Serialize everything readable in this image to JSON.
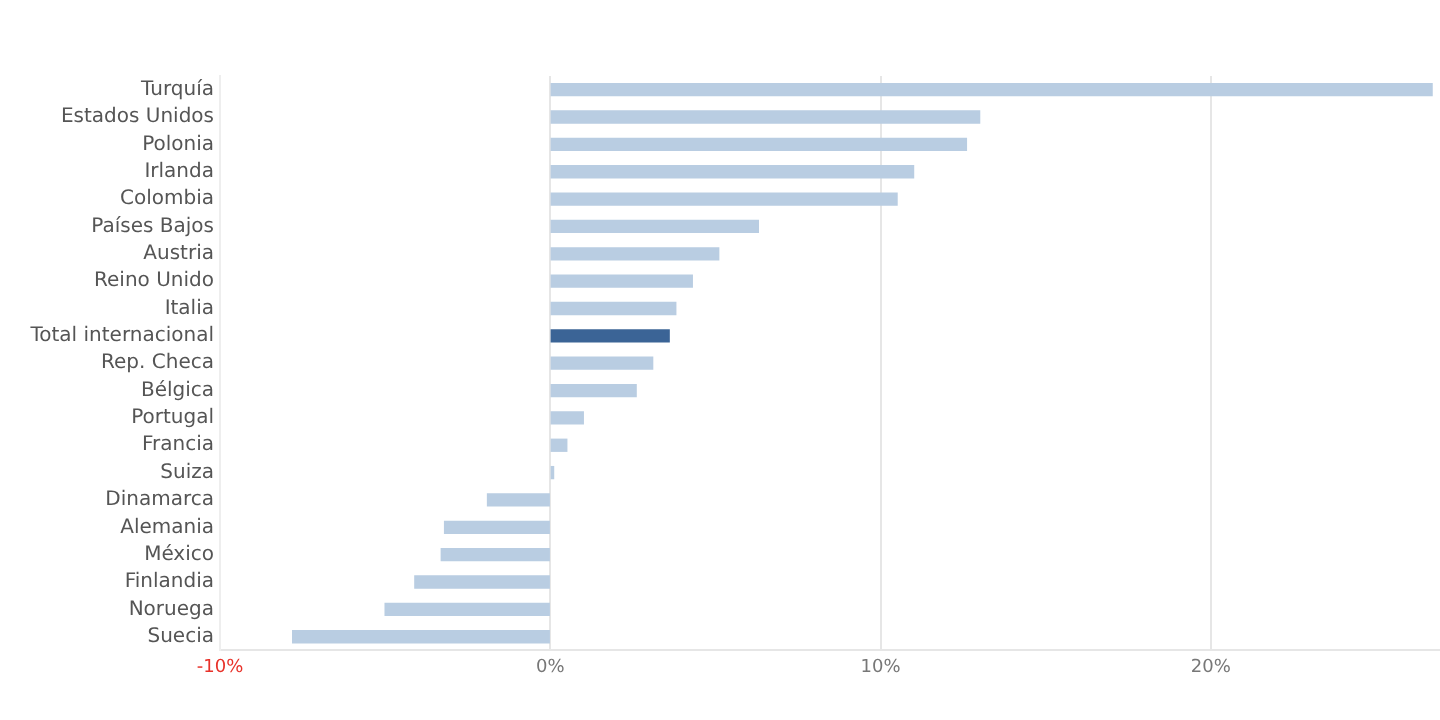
{
  "chart_data": {
    "type": "bar",
    "orientation": "horizontal",
    "categories": [
      "Turquía",
      "Estados Unidos",
      "Polonia",
      "Irlanda",
      "Colombia",
      "Países Bajos",
      "Austria",
      "Reino Unido",
      "Italia",
      "Total internacional",
      "Rep. Checa",
      "Bélgica",
      "Portugal",
      "Francia",
      "Suiza",
      "Dinamarca",
      "Alemania",
      "México",
      "Finlandia",
      "Noruega",
      "Suecia"
    ],
    "values": [
      26.7,
      13.0,
      12.6,
      11.0,
      10.5,
      6.3,
      5.1,
      4.3,
      3.8,
      3.6,
      3.1,
      2.6,
      1.0,
      0.5,
      0.1,
      -1.9,
      -3.2,
      -3.3,
      -4.1,
      -5.0,
      -7.8
    ],
    "colors": [
      "#b9cde2",
      "#b9cde2",
      "#b9cde2",
      "#b9cde2",
      "#b9cde2",
      "#b9cde2",
      "#b9cde2",
      "#b9cde2",
      "#b9cde2",
      "#3b6496",
      "#b9cde2",
      "#b9cde2",
      "#b9cde2",
      "#b9cde2",
      "#b9cde2",
      "#b9cde2",
      "#b9cde2",
      "#b9cde2",
      "#b9cde2",
      "#b9cde2",
      "#b9cde2"
    ],
    "xlim": [
      -10,
      27
    ],
    "xticks": [
      {
        "value": -10,
        "label": "-10%"
      },
      {
        "value": 0,
        "label": "0%"
      },
      {
        "value": 10,
        "label": "10%"
      },
      {
        "value": 20,
        "label": "20%"
      }
    ],
    "grid": "x",
    "legend": false
  }
}
